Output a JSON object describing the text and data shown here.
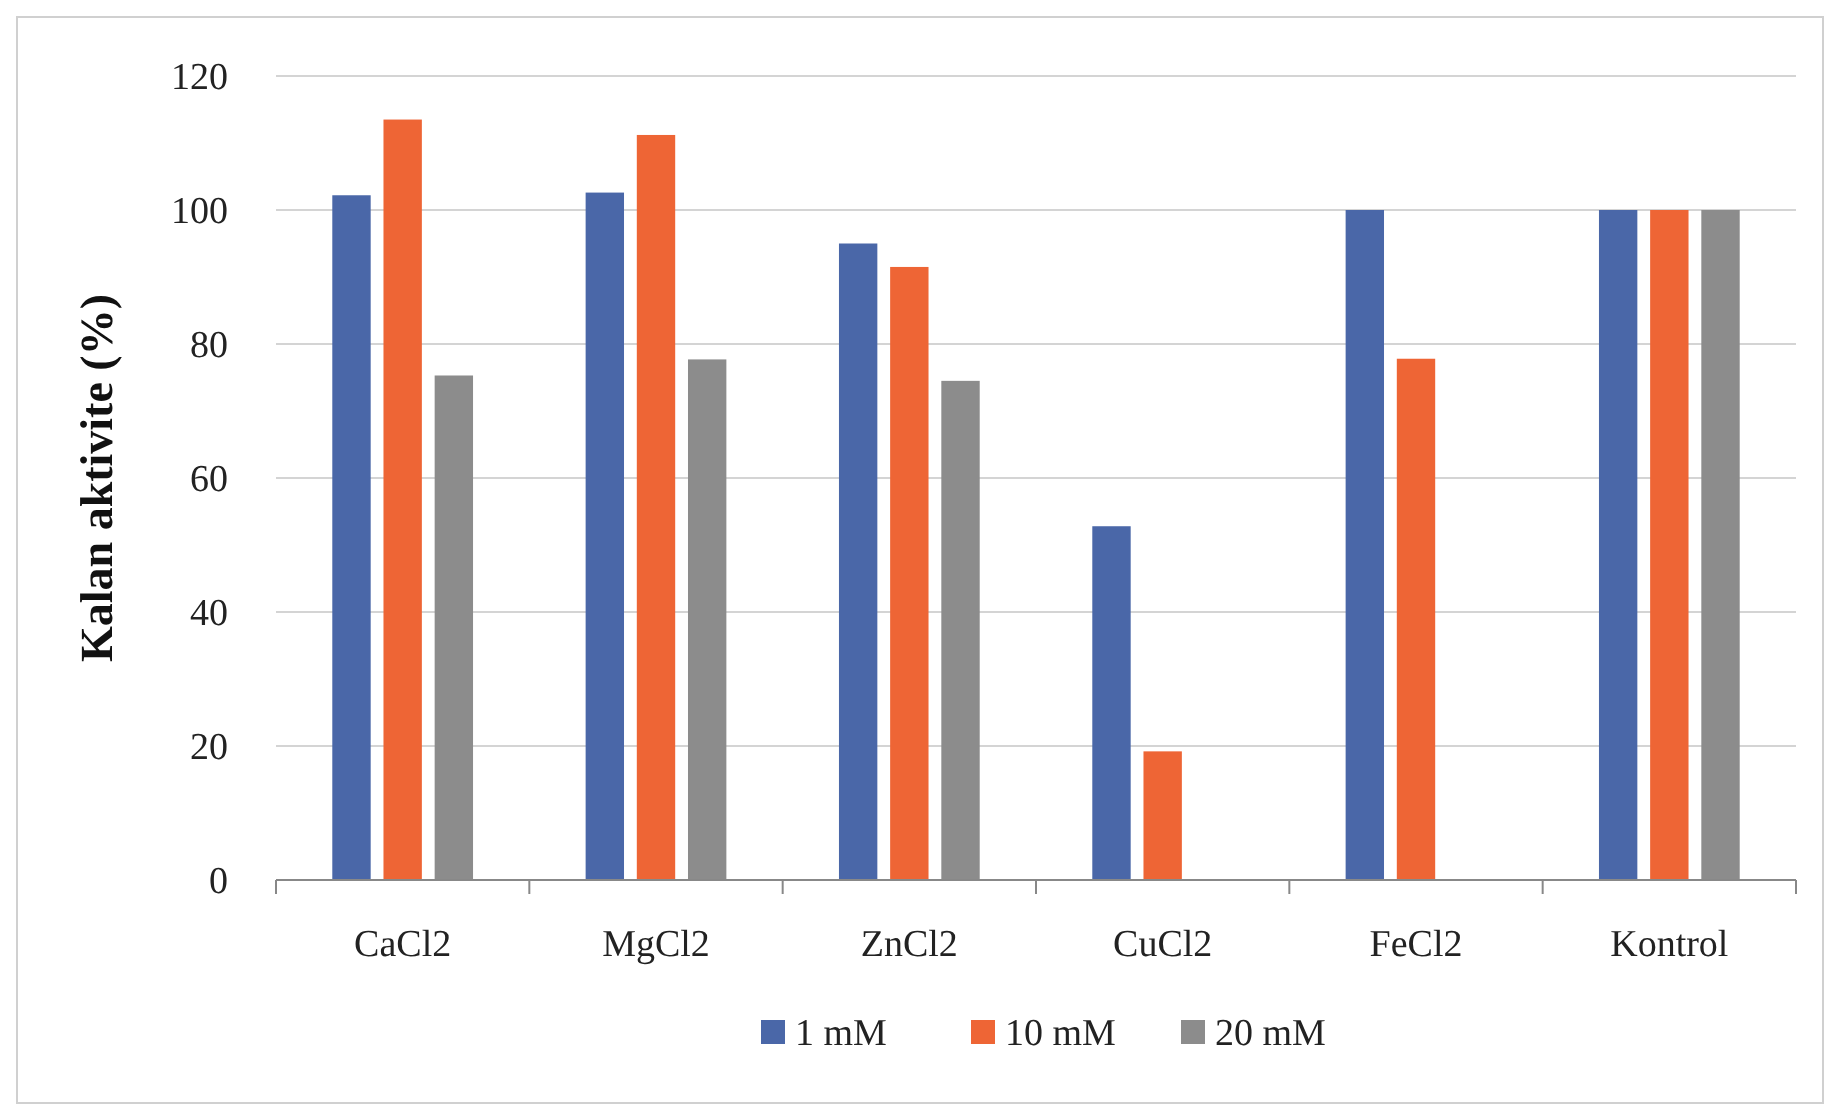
{
  "chart_data": {
    "type": "bar",
    "ylabel": "Kalan aktivite (%)",
    "categories": [
      "CaCl2",
      "MgCl2",
      "ZnCl2",
      "CuCl2",
      "FeCl2",
      "Kontrol"
    ],
    "series": [
      {
        "name": "1 mM",
        "color": "#4a67a8",
        "values": [
          102.2,
          102.6,
          95,
          52.8,
          100,
          100
        ]
      },
      {
        "name": "10 mM",
        "color": "#ee6535",
        "values": [
          113.5,
          111.2,
          91.5,
          19.2,
          77.8,
          100
        ]
      },
      {
        "name": "20 mM",
        "color": "#8c8c8c",
        "values": [
          75.3,
          77.7,
          74.5,
          null,
          null,
          100
        ]
      }
    ],
    "ylim": [
      0,
      120
    ],
    "yticks": [
      0,
      20,
      40,
      60,
      80,
      100,
      120
    ],
    "grid": "y",
    "legend": "bottom"
  }
}
